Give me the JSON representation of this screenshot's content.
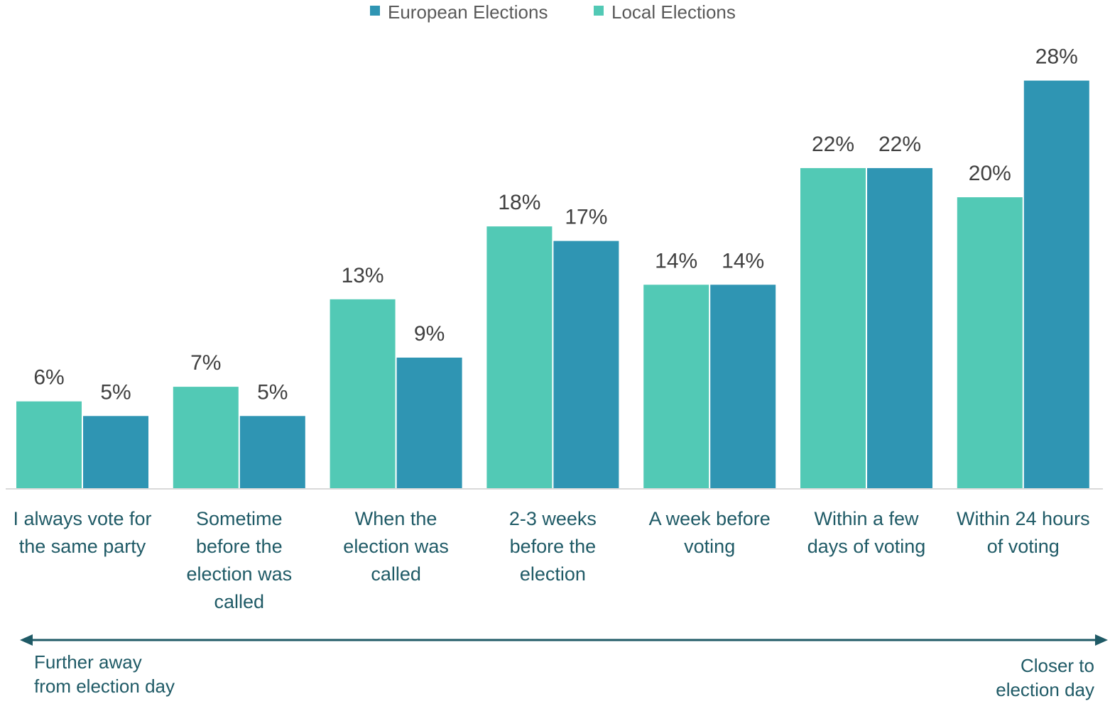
{
  "chart_data": {
    "type": "bar",
    "categories": [
      [
        "I always vote for",
        "the same party"
      ],
      [
        "Sometime",
        "before the",
        "election was",
        "called"
      ],
      [
        "When the",
        "election was",
        "called"
      ],
      [
        "2-3 weeks",
        "before the",
        "election"
      ],
      [
        "A week before",
        "voting"
      ],
      [
        "Within a few",
        "days of voting"
      ],
      [
        "Within 24 hours",
        "of voting"
      ]
    ],
    "series": [
      {
        "name": "Local Elections",
        "color": "#52c9b5",
        "values": [
          6,
          7,
          13,
          18,
          14,
          22,
          20
        ],
        "labels": [
          "6%",
          "7%",
          "13%",
          "18%",
          "14%",
          "22%",
          "20%"
        ]
      },
      {
        "name": "European Elections",
        "color": "#2f95b3",
        "values": [
          5,
          5,
          9,
          17,
          14,
          22,
          28
        ],
        "labels": [
          "5%",
          "5%",
          "9%",
          "17%",
          "14%",
          "22%",
          "28%"
        ]
      }
    ],
    "legend_order": [
      "European Elections",
      "Local Elections"
    ],
    "legend_position": "top-center",
    "ylim": [
      0,
      28
    ],
    "grid": false,
    "annotations": {
      "left": [
        "Further away",
        "from election day"
      ],
      "right": [
        "Closer to",
        "election day"
      ],
      "arrow_color": "#1f5a66"
    },
    "text_colors": {
      "value_label": "#404040",
      "category_label": "#1f5a66"
    }
  }
}
